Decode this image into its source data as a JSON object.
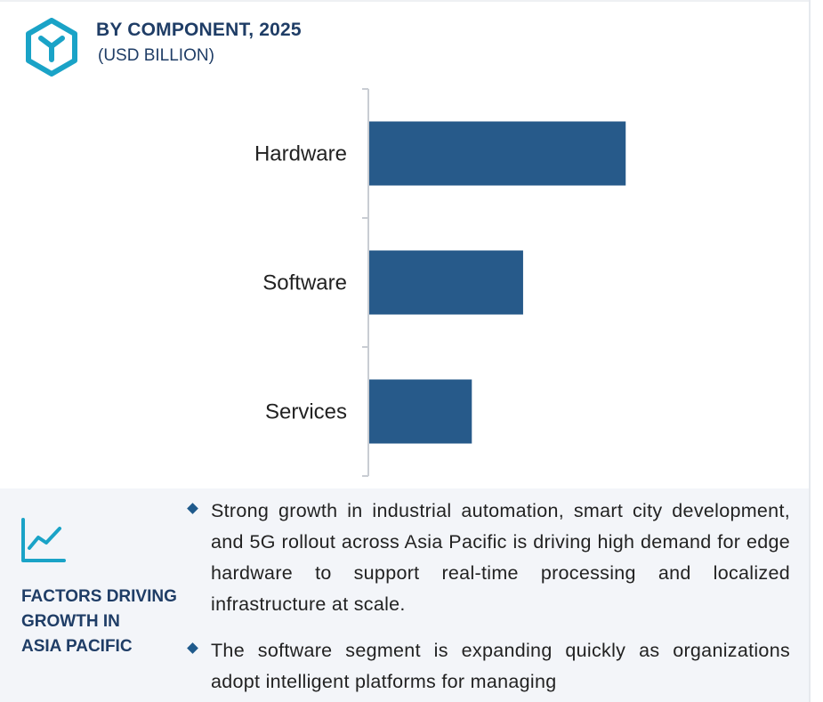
{
  "header": {
    "title": "BY COMPONENT, 2025",
    "subtitle": "(USD BILLION)",
    "logo_icon": "hexagon-y-logo-icon"
  },
  "colors": {
    "bar": "#275a8a",
    "title": "#1f3d66",
    "accent": "#1aa3c7",
    "panel_bg": "#f3f5f9"
  },
  "chart_data": {
    "type": "bar",
    "orientation": "horizontal",
    "title": "BY COMPONENT, 2025",
    "subtitle": "(USD BILLION)",
    "categories": [
      "Hardware",
      "Software",
      "Services"
    ],
    "values": [
      5.0,
      3.0,
      2.0
    ],
    "xlim": [
      0,
      8.5
    ],
    "xlabel": "",
    "ylabel": "",
    "grid": false,
    "axis_labels_shown": false
  },
  "factors": {
    "icon": "line-chart-trend-icon",
    "title_lines": [
      "FACTORS DRIVING",
      "GROWTH IN",
      "ASIA PACIFIC"
    ],
    "bullets": [
      "Strong growth in industrial automation, smart city development, and 5G rollout across Asia Pacific is driving high demand for edge hardware to support real-time processing and localized infrastructure at scale.",
      "The software segment is expanding quickly as organizations adopt intelligent platforms for managing"
    ]
  }
}
